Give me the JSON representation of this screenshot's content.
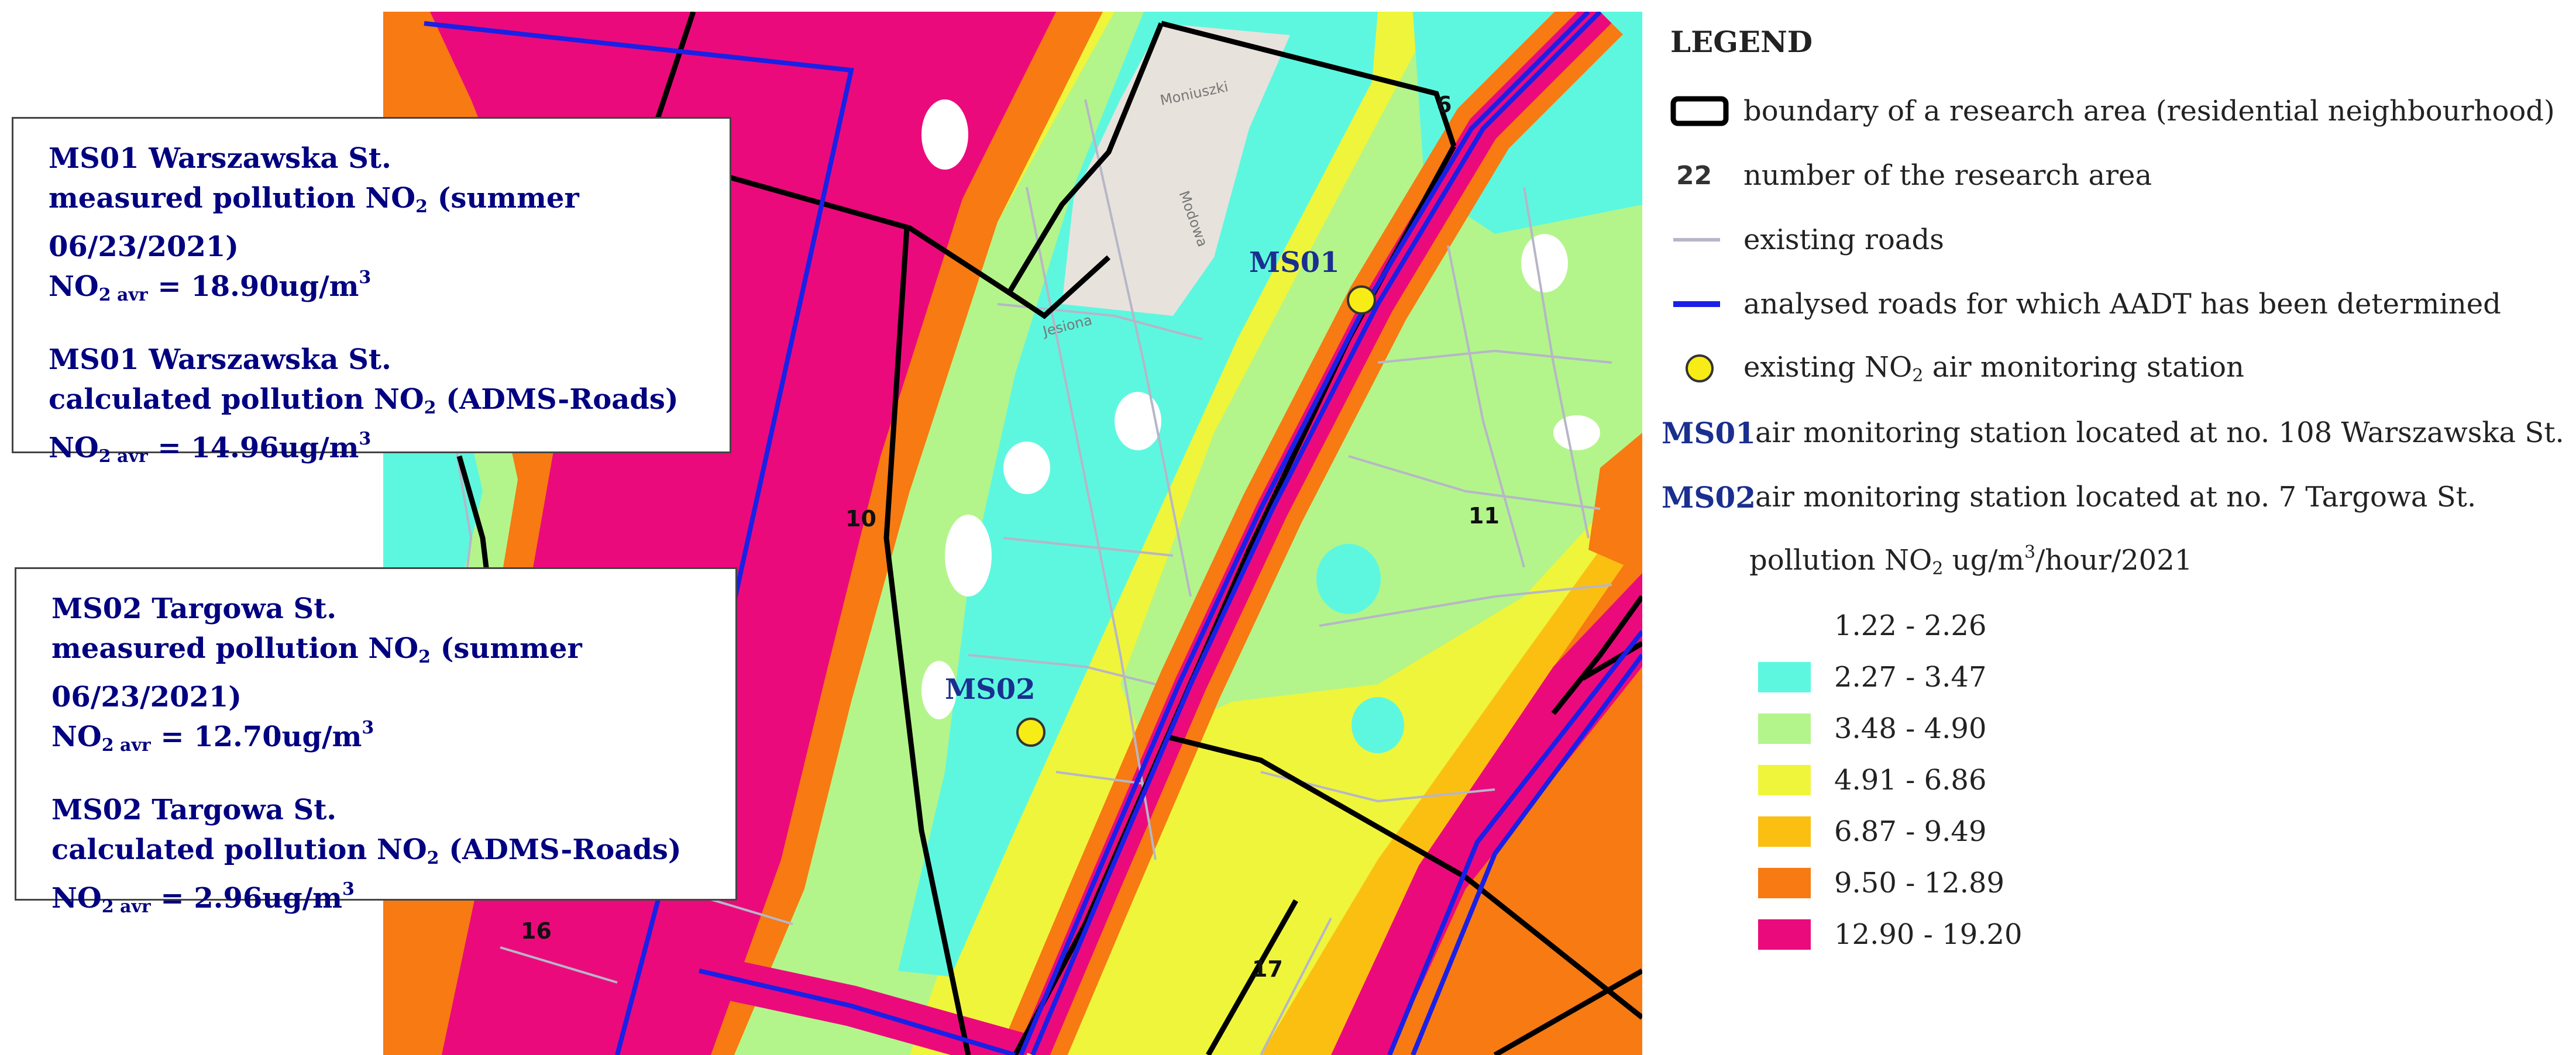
{
  "map": {
    "area_numbers": [
      "6",
      "10",
      "11",
      "16",
      "17"
    ],
    "street_labels": [
      "Moniuszki",
      "Jesiona",
      "Modowa"
    ],
    "stations": [
      {
        "label": "MS01"
      },
      {
        "label": "MS02"
      }
    ],
    "colors": {
      "class1": "#ffffff",
      "class2": "#5df7e0",
      "class3": "#b3f58a",
      "class4": "#eff53a",
      "class5": "#fbbf12",
      "class6": "#f77a12",
      "class7": "#eb0a7c",
      "boundary": "#000000",
      "analysed_road": "#1a20e6",
      "existing_road": "#b6b6c8",
      "station_fill": "#f7ec16"
    }
  },
  "callout_ms01": {
    "measured_title": "MS01 Warszawska St.",
    "measured_line_pre": "measured pollution NO",
    "measured_line_sub": "2",
    "measured_line_post": " (summer 06/23/2021)",
    "measured_value_pre": "NO",
    "measured_value_sub": "2 avr",
    "measured_value_mid": " = 18.90ug/m",
    "measured_value_sup": "3",
    "calculated_title": "MS01 Warszawska St.",
    "calculated_line_pre": "calculated pollution NO",
    "calculated_line_sub": "2",
    "calculated_line_post": " (ADMS-Roads)",
    "calculated_value_pre": "NO",
    "calculated_value_sub": "2 avr",
    "calculated_value_mid": " = 14.96ug/m",
    "calculated_value_sup": "3"
  },
  "callout_ms02": {
    "measured_title": "MS02 Targowa St.",
    "measured_line_pre": "measured pollution NO",
    "measured_line_sub": "2",
    "measured_line_post": " (summer 06/23/2021)",
    "measured_value_pre": "NO",
    "measured_value_sub": "2 avr",
    "measured_value_mid": " = 12.70ug/m",
    "measured_value_sup": "3",
    "calculated_title": "MS02 Targowa St.",
    "calculated_line_pre": "calculated pollution NO",
    "calculated_line_sub": "2",
    "calculated_line_post": " (ADMS-Roads)",
    "calculated_value_pre": "NO",
    "calculated_value_sub": "2 avr",
    "calculated_value_mid": " = 2.96ug/m",
    "calculated_value_sup": "3"
  },
  "legend": {
    "title": "LEGEND",
    "boundary_label": "boundary of a research area (residential neighbourhood)",
    "area_number_symbol": "22",
    "area_number_label": "number of the research area",
    "roads_label": "existing roads",
    "analysed_roads_label": "analysed roads for which AADT has been determined",
    "station_label_pre": "existing NO",
    "station_label_sub": "2",
    "station_label_post": " air monitoring station",
    "ms01_code": "MS01",
    "ms01_label": "air monitoring station located at no. 108 Warszawska St.",
    "ms02_code": "MS02",
    "ms02_label": "air monitoring station located at no. 7 Targowa St.",
    "scale_title_pre": "pollution NO",
    "scale_title_sub": "2",
    "scale_title_mid": " ug/m",
    "scale_title_sup": "3",
    "scale_title_post": "/hour/2021",
    "classes": [
      {
        "range": "1.22 - 2.26",
        "color": "#ffffff"
      },
      {
        "range": "2.27 - 3.47",
        "color": "#5df7e0"
      },
      {
        "range": "3.48 - 4.90",
        "color": "#b3f58a"
      },
      {
        "range": "4.91 - 6.86",
        "color": "#eff53a"
      },
      {
        "range": "6.87 - 9.49",
        "color": "#fbbf12"
      },
      {
        "range": "9.50 - 12.89",
        "color": "#f77a12"
      },
      {
        "range": "12.90 - 19.20",
        "color": "#eb0a7c"
      }
    ]
  }
}
